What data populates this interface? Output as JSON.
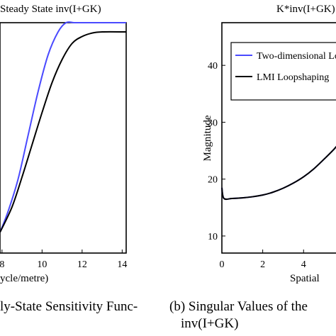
{
  "chart_data": [
    {
      "type": "line",
      "title": "Steady State inv(I+GK)",
      "xlabel": "ycle/metre)",
      "ylabel": "",
      "xlim": [
        7.9,
        14.2
      ],
      "ylim": [
        0,
        1
      ],
      "x_ticks": [
        "8",
        "10",
        "12",
        "14"
      ],
      "grid": false,
      "series": [
        {
          "color": "#4a4aff",
          "x": [
            7.9,
            8.3,
            8.8,
            9.3,
            9.8,
            10.3,
            10.8,
            11.2,
            11.6,
            12.0,
            14.2
          ],
          "y": [
            0.09,
            0.18,
            0.32,
            0.51,
            0.7,
            0.86,
            0.96,
            1.0,
            1.0,
            1.0,
            1.0
          ]
        },
        {
          "color": "#000000",
          "x": [
            7.9,
            8.5,
            9.0,
            9.5,
            10.0,
            10.5,
            11.0,
            11.5,
            12.0,
            12.5,
            13.0,
            14.2
          ],
          "y": [
            0.09,
            0.2,
            0.33,
            0.47,
            0.61,
            0.74,
            0.84,
            0.91,
            0.94,
            0.955,
            0.96,
            0.96
          ]
        }
      ]
    },
    {
      "type": "line",
      "title": "K*inv(I+GK) i",
      "xlabel": "Spatial",
      "ylabel": "Magnitude",
      "xlim": [
        0,
        5.9
      ],
      "ylim": [
        7,
        47.5
      ],
      "x_ticks": [
        "0",
        "2",
        "4"
      ],
      "y_ticks": [
        "10",
        "20",
        "30",
        "40"
      ],
      "grid": false,
      "legend_position": "top-left",
      "series": [
        {
          "name": "Two-dimensional Loopsha",
          "color": "#4a4aff",
          "x": [
            0,
            0.1,
            0.5,
            1.0,
            1.5,
            2.0,
            2.5,
            3.0,
            3.5,
            4.0,
            4.5,
            5.0,
            5.5,
            5.9
          ],
          "y": [
            18.5,
            16.6,
            16.6,
            16.7,
            16.9,
            17.2,
            17.7,
            18.4,
            19.3,
            20.4,
            21.8,
            23.5,
            25.3,
            27.0
          ]
        },
        {
          "name": "LMI Loopshaping",
          "color": "#000000",
          "x": [
            0,
            0.1,
            0.5,
            1.0,
            1.5,
            2.0,
            2.5,
            3.0,
            3.5,
            4.0,
            4.5,
            5.0,
            5.5,
            5.9
          ],
          "y": [
            18.5,
            16.6,
            16.6,
            16.7,
            16.9,
            17.2,
            17.7,
            18.4,
            19.3,
            20.4,
            21.8,
            23.5,
            25.3,
            27.0
          ]
        }
      ]
    }
  ],
  "captions": {
    "left": "ly-State Sensitivity Func-",
    "right_line1": "(b)  Singular Values of the",
    "right_line2": "inv(I+GK)"
  }
}
